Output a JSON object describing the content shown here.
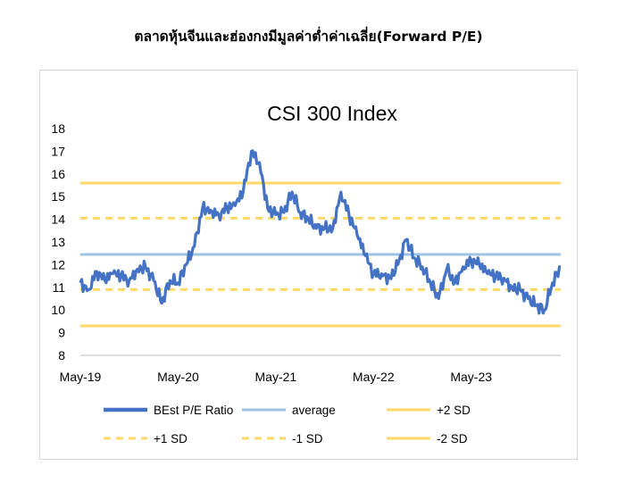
{
  "page": {
    "title": "ตลาดหุ้นจีนและฮ่องกงมีมูลค่าต่ำค่าเฉลี่ย(Forward P/E)"
  },
  "chart_data": {
    "type": "line",
    "title": "CSI 300 Index",
    "xlabel": "",
    "ylabel": "",
    "ylim": [
      8,
      18
    ],
    "yticks": [
      "8",
      "9",
      "10",
      "11",
      "12",
      "13",
      "14",
      "15",
      "16",
      "17",
      "18"
    ],
    "xticks": [
      "May-19",
      "May-20",
      "May-21",
      "May-22",
      "May-23"
    ],
    "x_range": [
      "2019-05",
      "2024-04"
    ],
    "grid": false,
    "legend_position": "bottom",
    "colors": {
      "series": "#4472c4",
      "average": "#9dc3e6",
      "band": "#ffd966"
    },
    "series": [
      {
        "name": "BEst P/E Ratio",
        "x": [
          "2019-05",
          "2019-06",
          "2019-07",
          "2019-08",
          "2019-09",
          "2019-10",
          "2019-11",
          "2019-12",
          "2020-01",
          "2020-02",
          "2020-03",
          "2020-04",
          "2020-05",
          "2020-06",
          "2020-07",
          "2020-08",
          "2020-09",
          "2020-10",
          "2020-11",
          "2020-12",
          "2021-01",
          "2021-02",
          "2021-03",
          "2021-04",
          "2021-05",
          "2021-06",
          "2021-07",
          "2021-08",
          "2021-09",
          "2021-10",
          "2021-11",
          "2021-12",
          "2022-01",
          "2022-02",
          "2022-03",
          "2022-04",
          "2022-05",
          "2022-06",
          "2022-07",
          "2022-08",
          "2022-09",
          "2022-10",
          "2022-11",
          "2022-12",
          "2023-01",
          "2023-02",
          "2023-03",
          "2023-04",
          "2023-05",
          "2023-06",
          "2023-07",
          "2023-08",
          "2023-09",
          "2023-10",
          "2023-11",
          "2023-12",
          "2024-01",
          "2024-02",
          "2024-03",
          "2024-04"
        ],
        "values": [
          11.2,
          10.9,
          11.7,
          11.3,
          11.6,
          11.5,
          11.3,
          11.8,
          11.9,
          11.3,
          10.3,
          11.3,
          11.2,
          12.0,
          12.8,
          14.5,
          14.4,
          14.2,
          14.5,
          14.6,
          15.2,
          17.0,
          16.5,
          14.5,
          14.2,
          14.3,
          15.2,
          14.3,
          14.0,
          13.6,
          13.6,
          13.6,
          15.2,
          14.2,
          13.3,
          12.4,
          11.6,
          11.6,
          11.4,
          12.0,
          13.1,
          12.3,
          11.9,
          11.2,
          10.5,
          11.8,
          11.2,
          11.9,
          12.2,
          12.0,
          11.6,
          11.5,
          11.4,
          11.0,
          10.9,
          10.5,
          10.2,
          10.0,
          11.2,
          11.9
        ]
      },
      {
        "name": "average",
        "value": 12.45
      },
      {
        "name": "+2 SD",
        "value": 15.6
      },
      {
        "name": "+1 SD",
        "value": 14.05
      },
      {
        "name": "-1 SD",
        "value": 10.9
      },
      {
        "name": "-2 SD",
        "value": 9.3
      }
    ]
  }
}
